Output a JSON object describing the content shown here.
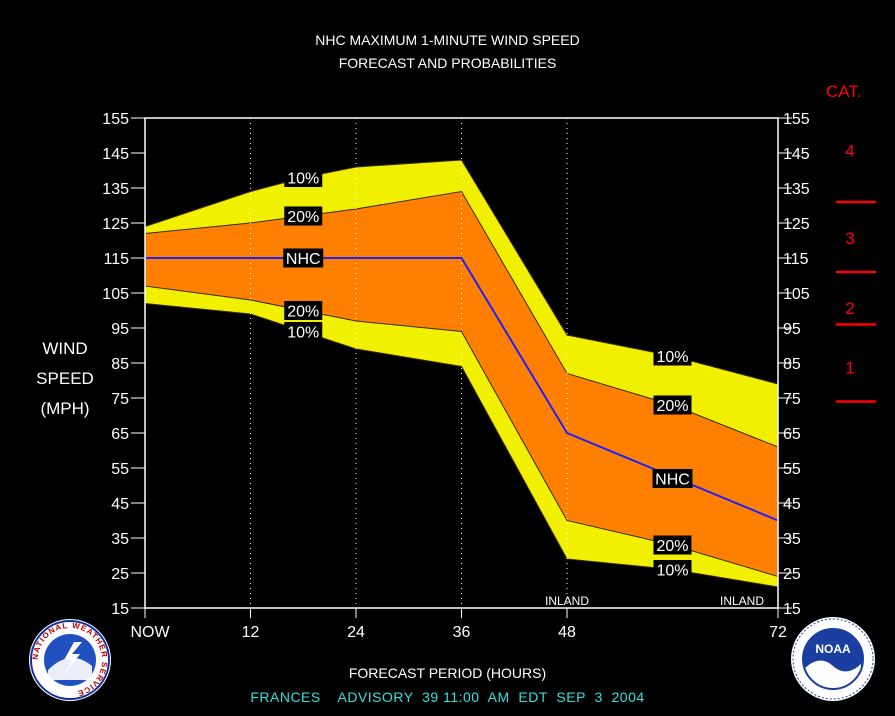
{
  "title_line1": "NHC MAXIMUM 1-MINUTE WIND SPEED",
  "title_line2": "FORECAST AND PROBABILITIES",
  "ylabel_lines": [
    "WIND",
    "SPEED",
    "(MPH)"
  ],
  "cat_title": "CAT.",
  "xlabel": "FORECAST PERIOD (HOURS)",
  "advisory": "FRANCES    ADVISORY  39 11:00  AM  EDT  SEP  3  2004",
  "left_logo_text": "NATIONAL WEATHER SERVICE",
  "right_logo_text": "NOAA",
  "colors": {
    "outer_band": "#f0f000",
    "inner_band": "#ff8000",
    "nhc_line": "#2020ff",
    "category": "#ff0000",
    "footer": "#33e0e0"
  },
  "chart_data": {
    "type": "area",
    "x_ticks": [
      {
        "x": 0,
        "label": "NOW"
      },
      {
        "x": 12,
        "label": "12"
      },
      {
        "x": 24,
        "label": "24"
      },
      {
        "x": 36,
        "label": "36"
      },
      {
        "x": 48,
        "label": "48"
      },
      {
        "x": 72,
        "label": "72"
      }
    ],
    "y_ticks": [
      15,
      25,
      35,
      45,
      55,
      65,
      75,
      85,
      95,
      105,
      115,
      125,
      135,
      145,
      155
    ],
    "xlim": [
      0,
      72
    ],
    "ylim": [
      15,
      155
    ],
    "gridlines_x": [
      12,
      24,
      36,
      48
    ],
    "series": [
      {
        "name": "10%",
        "x": [
          0,
          6,
          12,
          18,
          24,
          36,
          48,
          60,
          72
        ],
        "values": [
          124,
          129,
          134,
          138,
          141,
          143,
          93,
          87,
          79
        ]
      },
      {
        "name": "20%",
        "x": [
          0,
          12,
          18,
          24,
          36,
          48,
          60,
          72
        ],
        "values": [
          122,
          125,
          127,
          129,
          134,
          82,
          73,
          61
        ]
      },
      {
        "name": "NHC",
        "x": [
          0,
          12,
          24,
          36,
          48,
          72
        ],
        "values": [
          115,
          115,
          115,
          115,
          65,
          40
        ]
      },
      {
        "name": "20%",
        "x": [
          0,
          12,
          18,
          24,
          36,
          48,
          60,
          72
        ],
        "values": [
          107,
          103,
          100,
          97,
          94,
          40,
          33,
          24
        ]
      },
      {
        "name": "10%",
        "x": [
          0,
          12,
          18,
          24,
          36,
          48,
          60,
          72
        ],
        "values": [
          102,
          99,
          94,
          89,
          84,
          29,
          26,
          21
        ]
      }
    ],
    "band_labels": [
      {
        "text": "10%",
        "x": 18,
        "y": 138
      },
      {
        "text": "20%",
        "x": 18,
        "y": 127
      },
      {
        "text": "NHC",
        "x": 18,
        "y": 115
      },
      {
        "text": "20%",
        "x": 18,
        "y": 100
      },
      {
        "text": "10%",
        "x": 18,
        "y": 94
      },
      {
        "text": "10%",
        "x": 60,
        "y": 87
      },
      {
        "text": "20%",
        "x": 60,
        "y": 73
      },
      {
        "text": "NHC",
        "x": 60,
        "y": 52
      },
      {
        "text": "20%",
        "x": 60,
        "y": 33
      },
      {
        "text": "10%",
        "x": 60,
        "y": 26
      }
    ],
    "inland_labels": [
      {
        "text": "INLAND",
        "x": 48
      },
      {
        "text": "INLAND",
        "x": 72
      }
    ],
    "categories": [
      {
        "label": "4",
        "y": 146
      },
      {
        "label": "3",
        "y": 121
      },
      {
        "label": "2",
        "y": 101
      },
      {
        "label": "1",
        "y": 84
      }
    ],
    "category_thresholds": [
      131,
      111,
      96,
      74
    ]
  }
}
